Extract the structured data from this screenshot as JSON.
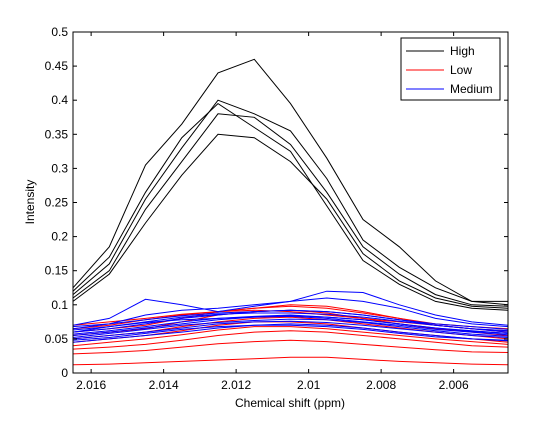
{
  "chart_data": {
    "type": "line",
    "title": "",
    "xlabel": "Chemical shift (ppm)",
    "ylabel": "Intensity",
    "x_reversed": true,
    "xlim": [
      2.0045,
      2.0165
    ],
    "ylim": [
      0,
      0.5
    ],
    "xticks": [
      2.016,
      2.014,
      2.012,
      2.01,
      2.008,
      2.006
    ],
    "xtick_labels": [
      "2.016",
      "2.014",
      "2.012",
      "2.01",
      "2.008",
      "2.006"
    ],
    "yticks": [
      0,
      0.05,
      0.1,
      0.15,
      0.2,
      0.25,
      0.3,
      0.35,
      0.4,
      0.45,
      0.5
    ],
    "ytick_labels": [
      "0",
      "0.05",
      "0.1",
      "0.15",
      "0.2",
      "0.25",
      "0.3",
      "0.35",
      "0.4",
      "0.45",
      "0.5"
    ],
    "grid": false,
    "legend_position": "top-right",
    "x": [
      2.0165,
      2.0155,
      2.0145,
      2.0135,
      2.0125,
      2.0115,
      2.0105,
      2.0095,
      2.0085,
      2.0075,
      2.0065,
      2.0055,
      2.0045
    ],
    "series": [
      {
        "name": "High",
        "color": "#000000",
        "lines": [
          [
            0.125,
            0.185,
            0.305,
            0.365,
            0.44,
            0.46,
            0.395,
            0.315,
            0.225,
            0.185,
            0.135,
            0.105,
            0.105
          ],
          [
            0.115,
            0.16,
            0.255,
            0.33,
            0.4,
            0.38,
            0.355,
            0.285,
            0.195,
            0.155,
            0.125,
            0.105,
            0.1
          ],
          [
            0.11,
            0.15,
            0.24,
            0.31,
            0.38,
            0.375,
            0.335,
            0.265,
            0.185,
            0.145,
            0.115,
            0.1,
            0.098
          ],
          [
            0.105,
            0.145,
            0.22,
            0.29,
            0.35,
            0.345,
            0.31,
            0.255,
            0.175,
            0.135,
            0.11,
            0.098,
            0.095
          ],
          [
            0.12,
            0.17,
            0.265,
            0.345,
            0.395,
            0.36,
            0.325,
            0.245,
            0.165,
            0.13,
            0.105,
            0.095,
            0.092
          ]
        ]
      },
      {
        "name": "Low",
        "color": "#ff0000",
        "lines": [
          [
            0.06,
            0.065,
            0.07,
            0.08,
            0.09,
            0.095,
            0.1,
            0.098,
            0.09,
            0.08,
            0.07,
            0.065,
            0.06
          ],
          [
            0.055,
            0.06,
            0.065,
            0.075,
            0.085,
            0.09,
            0.092,
            0.088,
            0.08,
            0.072,
            0.065,
            0.06,
            0.055
          ],
          [
            0.05,
            0.055,
            0.06,
            0.068,
            0.075,
            0.08,
            0.082,
            0.078,
            0.072,
            0.066,
            0.06,
            0.055,
            0.05
          ],
          [
            0.045,
            0.05,
            0.055,
            0.062,
            0.07,
            0.075,
            0.075,
            0.072,
            0.066,
            0.06,
            0.055,
            0.05,
            0.045
          ],
          [
            0.04,
            0.045,
            0.05,
            0.056,
            0.063,
            0.068,
            0.068,
            0.065,
            0.06,
            0.055,
            0.05,
            0.046,
            0.042
          ],
          [
            0.035,
            0.038,
            0.042,
            0.048,
            0.055,
            0.06,
            0.062,
            0.06,
            0.055,
            0.05,
            0.045,
            0.04,
            0.038
          ],
          [
            0.028,
            0.03,
            0.033,
            0.038,
            0.043,
            0.046,
            0.048,
            0.046,
            0.042,
            0.038,
            0.034,
            0.031,
            0.03
          ],
          [
            0.012,
            0.013,
            0.015,
            0.017,
            0.019,
            0.021,
            0.023,
            0.023,
            0.02,
            0.017,
            0.015,
            0.013,
            0.012
          ],
          [
            0.065,
            0.07,
            0.078,
            0.085,
            0.09,
            0.092,
            0.09,
            0.085,
            0.08,
            0.075,
            0.07,
            0.065,
            0.062
          ],
          [
            0.07,
            0.075,
            0.08,
            0.086,
            0.09,
            0.095,
            0.098,
            0.095,
            0.088,
            0.08,
            0.072,
            0.068,
            0.065
          ]
        ]
      },
      {
        "name": "Medium",
        "color": "#0000ff",
        "lines": [
          [
            0.07,
            0.08,
            0.108,
            0.1,
            0.09,
            0.098,
            0.105,
            0.12,
            0.118,
            0.1,
            0.085,
            0.075,
            0.07
          ],
          [
            0.065,
            0.072,
            0.085,
            0.092,
            0.095,
            0.1,
            0.105,
            0.11,
            0.105,
            0.095,
            0.08,
            0.072,
            0.068
          ],
          [
            0.06,
            0.065,
            0.072,
            0.08,
            0.085,
            0.09,
            0.092,
            0.09,
            0.085,
            0.078,
            0.07,
            0.065,
            0.06
          ],
          [
            0.055,
            0.06,
            0.066,
            0.072,
            0.078,
            0.082,
            0.083,
            0.08,
            0.075,
            0.07,
            0.064,
            0.06,
            0.056
          ],
          [
            0.05,
            0.055,
            0.06,
            0.066,
            0.072,
            0.075,
            0.076,
            0.074,
            0.07,
            0.065,
            0.06,
            0.055,
            0.052
          ],
          [
            0.045,
            0.05,
            0.055,
            0.06,
            0.066,
            0.07,
            0.072,
            0.07,
            0.066,
            0.06,
            0.055,
            0.05,
            0.047
          ],
          [
            0.06,
            0.068,
            0.074,
            0.078,
            0.08,
            0.083,
            0.085,
            0.082,
            0.078,
            0.072,
            0.066,
            0.062,
            0.058
          ],
          [
            0.052,
            0.058,
            0.064,
            0.07,
            0.074,
            0.077,
            0.079,
            0.078,
            0.074,
            0.068,
            0.062,
            0.057,
            0.054
          ],
          [
            0.068,
            0.072,
            0.078,
            0.084,
            0.088,
            0.09,
            0.092,
            0.09,
            0.085,
            0.078,
            0.072,
            0.068,
            0.064
          ],
          [
            0.048,
            0.052,
            0.058,
            0.064,
            0.068,
            0.07,
            0.07,
            0.068,
            0.064,
            0.058,
            0.053,
            0.05,
            0.048
          ],
          [
            0.063,
            0.068,
            0.075,
            0.082,
            0.086,
            0.088,
            0.088,
            0.086,
            0.082,
            0.076,
            0.07,
            0.065,
            0.062
          ],
          [
            0.057,
            0.062,
            0.068,
            0.075,
            0.08,
            0.082,
            0.084,
            0.082,
            0.078,
            0.072,
            0.066,
            0.061,
            0.058
          ]
        ]
      }
    ]
  }
}
